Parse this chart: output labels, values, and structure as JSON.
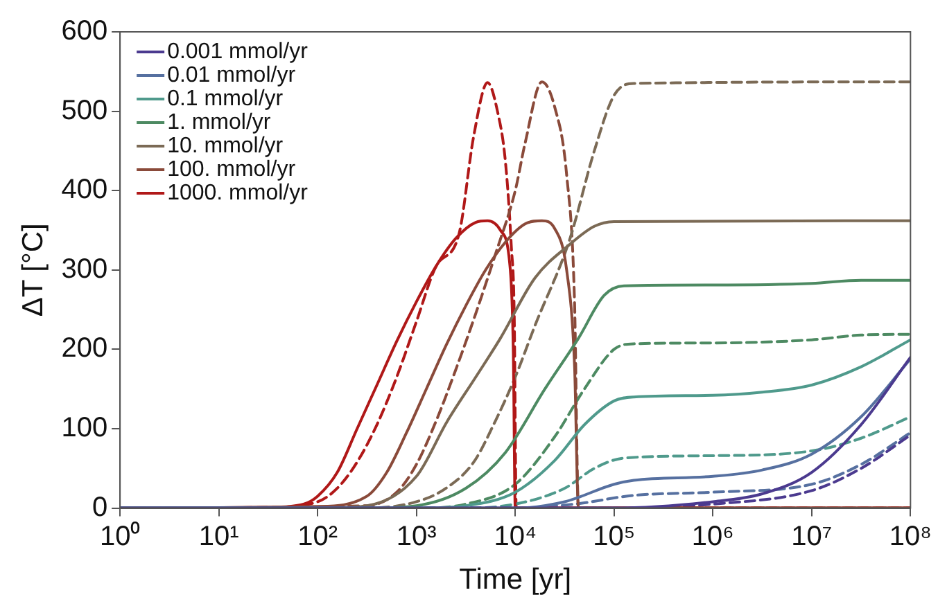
{
  "chart_data": {
    "type": "line",
    "xlabel": "Time [yr]",
    "ylabel": "ΔT [°C]",
    "log": "x",
    "xlim": [
      1,
      100000000
    ],
    "ylim": [
      0,
      600
    ],
    "xticks": [
      {
        "value": 1,
        "label": "10⁰"
      },
      {
        "value": 10,
        "label": "10¹"
      },
      {
        "value": 100,
        "label": "10²"
      },
      {
        "value": 1000,
        "label": "10³"
      },
      {
        "value": 10000,
        "label": "10⁴"
      },
      {
        "value": 100000,
        "label": "10⁵"
      },
      {
        "value": 1000000,
        "label": "10⁶"
      },
      {
        "value": 10000000,
        "label": "10⁷"
      },
      {
        "value": 100000000,
        "label": "10⁸"
      }
    ],
    "yticks": [
      0,
      100,
      200,
      300,
      400,
      500,
      600
    ],
    "grid": false,
    "legend": "top left",
    "marker": "none",
    "line_style": "solid",
    "series": [
      {
        "name": "0.001 mmol/yr",
        "color": "#4b3a8f",
        "x": [
          1,
          100000,
          1000000,
          3162278,
          10000000,
          31622777,
          100000000
        ],
        "values": [
          0,
          0,
          8,
          18,
          45,
          105,
          190
        ]
      },
      {
        "name": "0.01 mmol/yr",
        "color": "#5670a0",
        "x": [
          1,
          10000,
          31623,
          100000,
          158489,
          1000000,
          3162278,
          10000000,
          31622777,
          100000000
        ],
        "values": [
          0,
          0,
          8,
          30,
          35,
          40,
          48,
          68,
          115,
          188
        ]
      },
      {
        "name": "0.1 mmol/yr",
        "color": "#4f9a8c",
        "x": [
          1,
          1000,
          3162,
          10000,
          25119,
          50119,
          100000,
          158489,
          1000000,
          3162278,
          10000000,
          31622777,
          100000000
        ],
        "values": [
          0,
          0,
          3,
          20,
          60,
          105,
          135,
          140,
          142,
          146,
          155,
          178,
          212
        ]
      },
      {
        "name": "1. mmol/yr",
        "color": "#4d8a62",
        "x": [
          1,
          316,
          1000,
          3162,
          7943,
          19953,
          43652,
          79433,
          125893,
          1000000,
          10000000,
          31622777,
          100000000
        ],
        "values": [
          0,
          0,
          3,
          25,
          70,
          150,
          214,
          268,
          280,
          281,
          283,
          287,
          287
        ]
      },
      {
        "name": "10. mmol/yr",
        "color": "#7b6a55",
        "x": [
          1,
          100,
          316,
          1000,
          2042,
          3981,
          7079,
          15849,
          35481,
          63096,
          100000,
          100000000
        ],
        "values": [
          0,
          0,
          3,
          40,
          109,
          165,
          214,
          290,
          332,
          355,
          361,
          362
        ]
      },
      {
        "name": "100. mmol/yr",
        "color": "#8a4a3a",
        "x": [
          1,
          100,
          316,
          501,
          794,
          1259,
          1995,
          3162,
          5012,
          7943,
          12589,
          18621,
          25119,
          33113,
          39811,
          43652,
          43653,
          100000000
        ],
        "values": [
          0,
          2,
          15,
          45,
          95,
          150,
          205,
          255,
          300,
          335,
          358,
          362,
          352,
          300,
          180,
          0,
          0,
          0
        ]
      },
      {
        "name": "1000. mmol/yr",
        "color": "#b01818",
        "x": [
          1,
          31.6,
          72,
          100,
          158,
          251,
          398,
          631,
          1000,
          1585,
          2512,
          3981,
          5248,
          7079,
          8913,
          9550,
          10000,
          10001,
          100000000
        ],
        "values": [
          0,
          1,
          5,
          15,
          45,
          100,
          155,
          210,
          260,
          305,
          340,
          360,
          362,
          350,
          300,
          200,
          0,
          0,
          0
        ]
      },
      {
        "color": "#4b3a8f",
        "line_style": "dashed",
        "x": [
          1,
          100000,
          1000000,
          10000000,
          31622777,
          100000000
        ],
        "values": [
          0,
          0,
          5,
          22,
          50,
          92
        ]
      },
      {
        "color": "#5670a0",
        "line_style": "dashed",
        "x": [
          1,
          10000,
          39811,
          158489,
          1000000,
          10000000,
          31622777,
          100000000
        ],
        "values": [
          0,
          0,
          5,
          16,
          20,
          30,
          55,
          95
        ]
      },
      {
        "color": "#4f9a8c",
        "line_style": "dashed",
        "x": [
          1,
          3162,
          10000,
          31623,
          63096,
          125893,
          1000000,
          10000000,
          31622777,
          100000000
        ],
        "values": [
          0,
          0,
          5,
          25,
          50,
          63,
          66,
          72,
          88,
          115
        ]
      },
      {
        "color": "#4d8a62",
        "line_style": "dashed",
        "x": [
          1,
          1000,
          3162,
          10000,
          25119,
          50119,
          100000,
          158489,
          1000000,
          10000000,
          31622777,
          100000000
        ],
        "values": [
          0,
          0,
          5,
          30,
          90,
          150,
          200,
          207,
          208,
          212,
          218,
          219
        ]
      },
      {
        "color": "#7b6a55",
        "line_style": "dashed",
        "x": [
          1,
          316,
          1000,
          1995,
          3802,
          6310,
          10000,
          15849,
          35481,
          63096,
          100000,
          158489,
          100000000
        ],
        "values": [
          0,
          0,
          8,
          25,
          58,
          110,
          165,
          230,
          338,
          450,
          520,
          535,
          537
        ]
      },
      {
        "color": "#8a4a3a",
        "line_style": "dashed",
        "x": [
          1,
          316,
          631,
          1000,
          1585,
          2512,
          3981,
          6310,
          10000,
          12589,
          18621,
          25119,
          33113,
          39811,
          43652,
          43653,
          100000000
        ],
        "values": [
          0,
          3,
          20,
          55,
          110,
          175,
          245,
          320,
          400,
          460,
          537,
          505,
          420,
          260,
          0,
          0,
          0
        ]
      },
      {
        "color": "#b01818",
        "line_style": "dashed",
        "x": [
          1,
          31.6,
          100,
          158,
          251,
          398,
          631,
          1000,
          1585,
          2692,
          3802,
          5248,
          6607,
          7943,
          9120,
          9772,
          10233,
          10234,
          100000000
        ],
        "values": [
          0,
          1,
          8,
          25,
          58,
          105,
          165,
          235,
          305,
          345,
          469,
          536,
          500,
          437,
          330,
          240,
          0,
          0,
          0
        ]
      }
    ]
  }
}
